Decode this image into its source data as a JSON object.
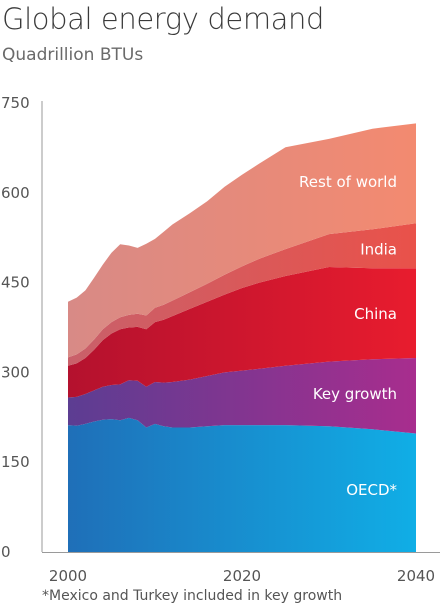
{
  "title": "Global energy demand",
  "subtitle": "Quadrillion BTUs",
  "footnote": "*Mexico and Turkey included in key growth",
  "chart_data": {
    "type": "area",
    "stacked": true,
    "title": "Global energy demand",
    "ylabel": "Quadrillion BTUs",
    "xlabel": "",
    "ylim": [
      0,
      750
    ],
    "xlim": [
      2000,
      2040
    ],
    "yticks": [
      0,
      150,
      300,
      450,
      600,
      750
    ],
    "xticks": [
      2000,
      2020,
      2040
    ],
    "grid": false,
    "x": [
      2000,
      2001,
      2002,
      2003,
      2004,
      2005,
      2006,
      2007,
      2008,
      2009,
      2010,
      2011,
      2012,
      2014,
      2016,
      2018,
      2020,
      2022,
      2025,
      2030,
      2035,
      2040
    ],
    "series": [
      {
        "name": "OECD*",
        "color": "#1a9ad9",
        "values": [
          212,
          211,
          214,
          218,
          221,
          222,
          220,
          224,
          220,
          208,
          214,
          210,
          208,
          208,
          210,
          212,
          212,
          212,
          212,
          210,
          205,
          198
        ]
      },
      {
        "name": "Key growth",
        "color": "#8e3592",
        "values": [
          46,
          48,
          50,
          52,
          55,
          57,
          60,
          63,
          66,
          68,
          70,
          73,
          76,
          80,
          84,
          88,
          91,
          94,
          99,
          108,
          117,
          126
        ]
      },
      {
        "name": "China",
        "color": "#d8162b",
        "values": [
          53,
          56,
          60,
          68,
          78,
          86,
          92,
          88,
          90,
          96,
          100,
          105,
          110,
          118,
          124,
          130,
          138,
          144,
          150,
          158,
          152,
          150
        ]
      },
      {
        "name": "India",
        "color": "#e2574e",
        "values": [
          14,
          15,
          16,
          17,
          18,
          19,
          20,
          21,
          22,
          23,
          24,
          25,
          26,
          28,
          30,
          33,
          36,
          40,
          45,
          55,
          65,
          75
        ]
      },
      {
        "name": "Rest of world",
        "color": "#ef8a72",
        "values": [
          93,
          95,
          97,
          103,
          108,
          116,
          122,
          116,
          110,
          120,
          115,
          122,
          127,
          132,
          138,
          147,
          153,
          159,
          170,
          159,
          168,
          167
        ]
      }
    ]
  }
}
